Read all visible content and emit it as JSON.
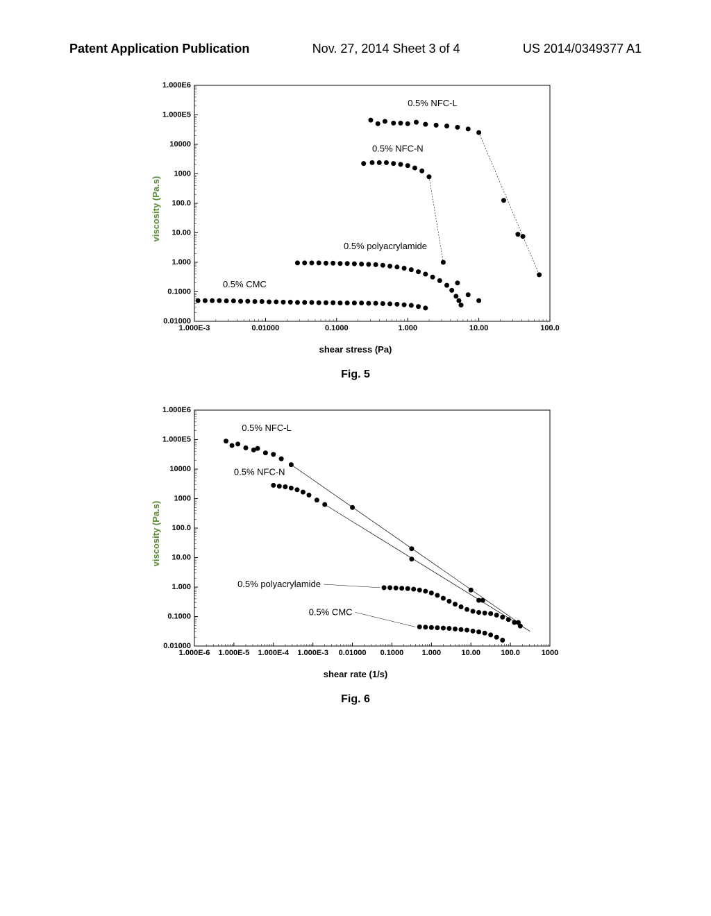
{
  "header": {
    "left": "Patent Application Publication",
    "center": "Nov. 27, 2014  Sheet 3 of 4",
    "right": "US 2014/0349377 A1"
  },
  "chart1": {
    "type": "scatter",
    "ylabel": "viscosity (Pa.s)",
    "xlabel": "shear stress (Pa)",
    "caption": "Fig. 5",
    "ylabel_color": "#5a8a3a",
    "axis_color": "#000000",
    "marker_color": "#000000",
    "marker_size": 3.5,
    "vline_style": "dashed",
    "x_log_min": -3,
    "x_log_max": 2,
    "y_log_min": -2,
    "y_log_max": 6,
    "x_ticks": [
      {
        "log": -3,
        "label": "1.000E-3"
      },
      {
        "log": -2,
        "label": "0.01000"
      },
      {
        "log": -1,
        "label": "0.1000"
      },
      {
        "log": 0,
        "label": "1.000"
      },
      {
        "log": 1,
        "label": "10.00"
      },
      {
        "log": 2,
        "label": "100.0"
      }
    ],
    "y_ticks": [
      {
        "log": -2,
        "label": "0.01000"
      },
      {
        "log": -1,
        "label": "0.1000"
      },
      {
        "log": 0,
        "label": "1.000"
      },
      {
        "log": 1,
        "label": "10.00"
      },
      {
        "log": 2,
        "label": "100.0"
      },
      {
        "log": 3,
        "label": "1000"
      },
      {
        "log": 4,
        "label": "10000"
      },
      {
        "log": 5,
        "label": "1.000E5"
      },
      {
        "log": 6,
        "label": "1.000E6"
      }
    ],
    "series": [
      {
        "name": "0.5% NFC-L",
        "label_pos": {
          "x": 0.0,
          "y": 5.3
        },
        "points": [
          {
            "x": -0.52,
            "y": 4.82
          },
          {
            "x": -0.42,
            "y": 4.7
          },
          {
            "x": -0.32,
            "y": 4.78
          },
          {
            "x": -0.2,
            "y": 4.72
          },
          {
            "x": -0.1,
            "y": 4.72
          },
          {
            "x": 0.0,
            "y": 4.7
          },
          {
            "x": 0.12,
            "y": 4.75
          },
          {
            "x": 0.25,
            "y": 4.68
          },
          {
            "x": 0.4,
            "y": 4.65
          },
          {
            "x": 0.55,
            "y": 4.62
          },
          {
            "x": 0.7,
            "y": 4.58
          },
          {
            "x": 0.85,
            "y": 4.52
          },
          {
            "x": 1.0,
            "y": 4.4
          },
          {
            "x": 1.35,
            "y": 2.1
          },
          {
            "x": 1.55,
            "y": 0.95
          },
          {
            "x": 1.62,
            "y": 0.88
          },
          {
            "x": 1.85,
            "y": -0.42
          }
        ],
        "vline_from": {
          "x": 1.0,
          "y": 4.4
        },
        "vline_to": {
          "x": 1.85,
          "y": -0.42
        }
      },
      {
        "name": "0.5% NFC-N",
        "label_pos": {
          "x": -0.5,
          "y": 3.75
        },
        "points": [
          {
            "x": -0.62,
            "y": 3.35
          },
          {
            "x": -0.5,
            "y": 3.38
          },
          {
            "x": -0.4,
            "y": 3.38
          },
          {
            "x": -0.3,
            "y": 3.38
          },
          {
            "x": -0.2,
            "y": 3.35
          },
          {
            "x": -0.1,
            "y": 3.32
          },
          {
            "x": 0.0,
            "y": 3.28
          },
          {
            "x": 0.1,
            "y": 3.2
          },
          {
            "x": 0.2,
            "y": 3.1
          },
          {
            "x": 0.3,
            "y": 2.9
          },
          {
            "x": 0.5,
            "y": 0.0
          },
          {
            "x": 0.7,
            "y": -0.7
          },
          {
            "x": 0.85,
            "y": -1.1
          },
          {
            "x": 1.0,
            "y": -1.3
          }
        ],
        "vline_from": {
          "x": 0.3,
          "y": 2.9
        },
        "vline_to": {
          "x": 0.5,
          "y": 0.0
        }
      },
      {
        "name": "0.5% polyacrylamide",
        "label_pos": {
          "x": -0.9,
          "y": 0.45
        },
        "points": [
          {
            "x": -1.55,
            "y": -0.02
          },
          {
            "x": -1.45,
            "y": -0.02
          },
          {
            "x": -1.35,
            "y": -0.02
          },
          {
            "x": -1.25,
            "y": -0.02
          },
          {
            "x": -1.15,
            "y": -0.03
          },
          {
            "x": -1.05,
            "y": -0.03
          },
          {
            "x": -0.95,
            "y": -0.04
          },
          {
            "x": -0.85,
            "y": -0.04
          },
          {
            "x": -0.75,
            "y": -0.05
          },
          {
            "x": -0.65,
            "y": -0.06
          },
          {
            "x": -0.55,
            "y": -0.07
          },
          {
            "x": -0.45,
            "y": -0.08
          },
          {
            "x": -0.35,
            "y": -0.1
          },
          {
            "x": -0.25,
            "y": -0.13
          },
          {
            "x": -0.15,
            "y": -0.16
          },
          {
            "x": -0.05,
            "y": -0.2
          },
          {
            "x": 0.05,
            "y": -0.25
          },
          {
            "x": 0.15,
            "y": -0.32
          },
          {
            "x": 0.25,
            "y": -0.4
          },
          {
            "x": 0.35,
            "y": -0.5
          },
          {
            "x": 0.45,
            "y": -0.62
          },
          {
            "x": 0.55,
            "y": -0.78
          },
          {
            "x": 0.62,
            "y": -0.95
          },
          {
            "x": 0.68,
            "y": -1.15
          },
          {
            "x": 0.72,
            "y": -1.3
          },
          {
            "x": 0.75,
            "y": -1.45
          }
        ]
      },
      {
        "name": "0.5% CMC",
        "label_pos": {
          "x": -2.6,
          "y": -0.85
        },
        "points": [
          {
            "x": -2.95,
            "y": -1.3
          },
          {
            "x": -2.85,
            "y": -1.3
          },
          {
            "x": -2.75,
            "y": -1.3
          },
          {
            "x": -2.65,
            "y": -1.3
          },
          {
            "x": -2.55,
            "y": -1.31
          },
          {
            "x": -2.45,
            "y": -1.31
          },
          {
            "x": -2.35,
            "y": -1.32
          },
          {
            "x": -2.25,
            "y": -1.32
          },
          {
            "x": -2.15,
            "y": -1.33
          },
          {
            "x": -2.05,
            "y": -1.33
          },
          {
            "x": -1.95,
            "y": -1.34
          },
          {
            "x": -1.85,
            "y": -1.34
          },
          {
            "x": -1.75,
            "y": -1.35
          },
          {
            "x": -1.65,
            "y": -1.35
          },
          {
            "x": -1.55,
            "y": -1.36
          },
          {
            "x": -1.45,
            "y": -1.36
          },
          {
            "x": -1.35,
            "y": -1.36
          },
          {
            "x": -1.25,
            "y": -1.37
          },
          {
            "x": -1.15,
            "y": -1.37
          },
          {
            "x": -1.05,
            "y": -1.37
          },
          {
            "x": -0.95,
            "y": -1.38
          },
          {
            "x": -0.85,
            "y": -1.38
          },
          {
            "x": -0.75,
            "y": -1.38
          },
          {
            "x": -0.65,
            "y": -1.38
          },
          {
            "x": -0.55,
            "y": -1.39
          },
          {
            "x": -0.45,
            "y": -1.39
          },
          {
            "x": -0.35,
            "y": -1.4
          },
          {
            "x": -0.25,
            "y": -1.41
          },
          {
            "x": -0.15,
            "y": -1.42
          },
          {
            "x": -0.05,
            "y": -1.44
          },
          {
            "x": 0.05,
            "y": -1.46
          },
          {
            "x": 0.15,
            "y": -1.5
          },
          {
            "x": 0.25,
            "y": -1.55
          }
        ]
      }
    ]
  },
  "chart2": {
    "type": "scatter",
    "ylabel": "viscosity (Pa.s)",
    "xlabel": "shear rate (1/s)",
    "caption": "Fig. 6",
    "ylabel_color": "#5a8a3a",
    "axis_color": "#000000",
    "marker_color": "#000000",
    "marker_size": 3.5,
    "x_log_min": -6,
    "x_log_max": 3,
    "y_log_min": -2,
    "y_log_max": 6,
    "x_ticks": [
      {
        "log": -6,
        "label": "1.000E-6"
      },
      {
        "log": -5,
        "label": "1.000E-5"
      },
      {
        "log": -4,
        "label": "1.000E-4"
      },
      {
        "log": -3,
        "label": "1.000E-3"
      },
      {
        "log": -2,
        "label": "0.01000"
      },
      {
        "log": -1,
        "label": "0.1000"
      },
      {
        "log": 0,
        "label": "1.000"
      },
      {
        "log": 1,
        "label": "10.00"
      },
      {
        "log": 2,
        "label": "100.0"
      },
      {
        "log": 3,
        "label": "1000"
      }
    ],
    "y_ticks": [
      {
        "log": -2,
        "label": "0.01000"
      },
      {
        "log": -1,
        "label": "0.1000"
      },
      {
        "log": 0,
        "label": "1.000"
      },
      {
        "log": 1,
        "label": "10.00"
      },
      {
        "log": 2,
        "label": "100.0"
      },
      {
        "log": 3,
        "label": "1000"
      },
      {
        "log": 4,
        "label": "10000"
      },
      {
        "log": 5,
        "label": "1.000E5"
      },
      {
        "log": 6,
        "label": "1.000E6"
      }
    ],
    "series": [
      {
        "name": "0.5% NFC-L",
        "label_pos": {
          "x": -4.8,
          "y": 5.3
        },
        "points": [
          {
            "x": -5.2,
            "y": 4.95
          },
          {
            "x": -5.05,
            "y": 4.8
          },
          {
            "x": -4.9,
            "y": 4.85
          },
          {
            "x": -4.7,
            "y": 4.72
          },
          {
            "x": -4.5,
            "y": 4.65
          },
          {
            "x": -4.4,
            "y": 4.7
          },
          {
            "x": -4.2,
            "y": 4.55
          },
          {
            "x": -4.0,
            "y": 4.5
          },
          {
            "x": -3.8,
            "y": 4.35
          },
          {
            "x": -3.55,
            "y": 4.15
          },
          {
            "x": -2.0,
            "y": 2.7
          },
          {
            "x": -0.5,
            "y": 1.3
          },
          {
            "x": 1.0,
            "y": -0.1
          },
          {
            "x": 2.2,
            "y": -1.2
          }
        ],
        "line_from": {
          "x": -3.55,
          "y": 4.15
        },
        "line_to": {
          "x": 2.2,
          "y": -1.2
        }
      },
      {
        "name": "0.5% NFC-N",
        "label_pos": {
          "x": -5.0,
          "y": 3.8
        },
        "points": [
          {
            "x": -4.0,
            "y": 3.45
          },
          {
            "x": -3.85,
            "y": 3.42
          },
          {
            "x": -3.7,
            "y": 3.4
          },
          {
            "x": -3.55,
            "y": 3.36
          },
          {
            "x": -3.4,
            "y": 3.3
          },
          {
            "x": -3.25,
            "y": 3.22
          },
          {
            "x": -3.1,
            "y": 3.12
          },
          {
            "x": -2.9,
            "y": 2.95
          },
          {
            "x": -2.7,
            "y": 2.8
          },
          {
            "x": -0.5,
            "y": 0.95
          },
          {
            "x": 1.2,
            "y": -0.45
          },
          {
            "x": 1.3,
            "y": -0.45
          }
        ],
        "line_from": {
          "x": -2.7,
          "y": 2.8
        },
        "line_to": {
          "x": 2.5,
          "y": -1.5
        }
      },
      {
        "name": "0.5% polyacrylamide",
        "label_pos": {
          "x": -2.8,
          "y": 0.0
        },
        "label_align": "end",
        "points": [
          {
            "x": -1.2,
            "y": -0.02
          },
          {
            "x": -1.05,
            "y": -0.02
          },
          {
            "x": -0.9,
            "y": -0.03
          },
          {
            "x": -0.75,
            "y": -0.04
          },
          {
            "x": -0.6,
            "y": -0.05
          },
          {
            "x": -0.45,
            "y": -0.07
          },
          {
            "x": -0.3,
            "y": -0.1
          },
          {
            "x": -0.15,
            "y": -0.14
          },
          {
            "x": 0.0,
            "y": -0.2
          },
          {
            "x": 0.15,
            "y": -0.28
          },
          {
            "x": 0.3,
            "y": -0.38
          },
          {
            "x": 0.45,
            "y": -0.48
          },
          {
            "x": 0.6,
            "y": -0.58
          },
          {
            "x": 0.75,
            "y": -0.67
          },
          {
            "x": 0.9,
            "y": -0.76
          },
          {
            "x": 1.05,
            "y": -0.82
          },
          {
            "x": 1.2,
            "y": -0.86
          },
          {
            "x": 1.35,
            "y": -0.88
          },
          {
            "x": 1.5,
            "y": -0.9
          },
          {
            "x": 1.65,
            "y": -0.95
          },
          {
            "x": 1.8,
            "y": -1.02
          },
          {
            "x": 1.95,
            "y": -1.1
          },
          {
            "x": 2.1,
            "y": -1.2
          },
          {
            "x": 2.25,
            "y": -1.32
          }
        ]
      },
      {
        "name": "0.5% CMC",
        "label_pos": {
          "x": -2.0,
          "y": -0.95
        },
        "label_align": "end",
        "points": [
          {
            "x": -0.3,
            "y": -1.35
          },
          {
            "x": -0.15,
            "y": -1.36
          },
          {
            "x": 0.0,
            "y": -1.37
          },
          {
            "x": 0.15,
            "y": -1.38
          },
          {
            "x": 0.3,
            "y": -1.39
          },
          {
            "x": 0.45,
            "y": -1.4
          },
          {
            "x": 0.6,
            "y": -1.42
          },
          {
            "x": 0.75,
            "y": -1.44
          },
          {
            "x": 0.9,
            "y": -1.46
          },
          {
            "x": 1.05,
            "y": -1.49
          },
          {
            "x": 1.2,
            "y": -1.52
          },
          {
            "x": 1.35,
            "y": -1.56
          },
          {
            "x": 1.5,
            "y": -1.62
          },
          {
            "x": 1.65,
            "y": -1.7
          },
          {
            "x": 1.8,
            "y": -1.8
          }
        ]
      }
    ]
  }
}
